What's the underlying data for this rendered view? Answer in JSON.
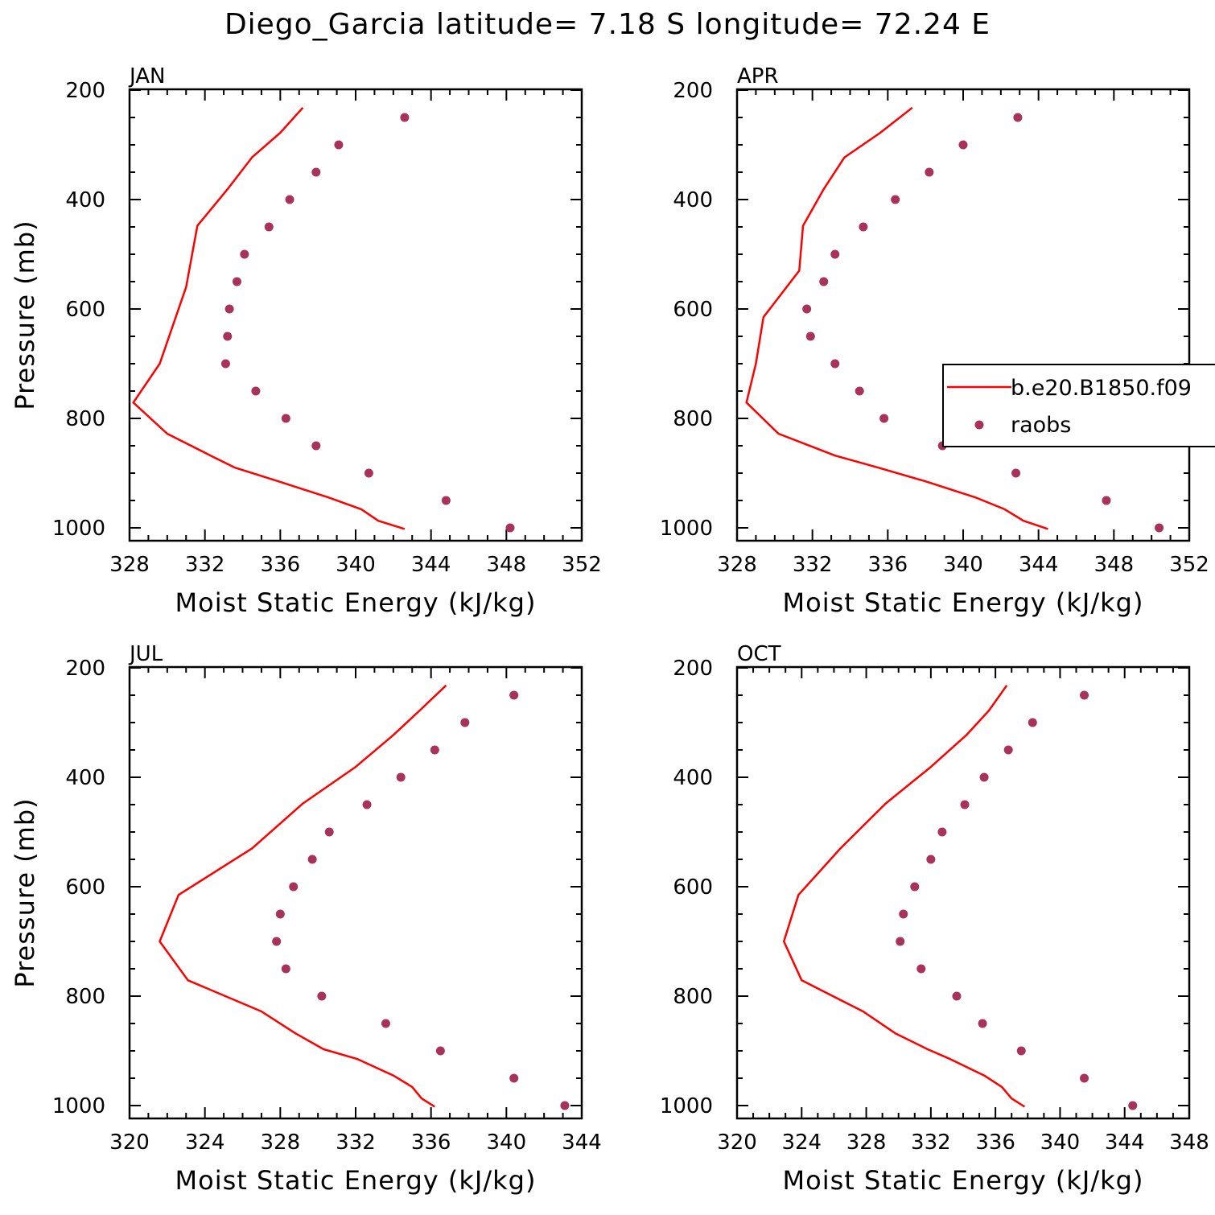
{
  "title": "Diego_Garcia  latitude= 7.18 S longitude= 72.24 E",
  "colors": {
    "model_line": "#ff0000",
    "raobs_dot": "#a8325a",
    "axis": "#000000"
  },
  "chart_data": [
    {
      "type": "line+scatter",
      "panel_label": "JAN",
      "xlabel": "Moist Static Energy (kJ/kg)",
      "ylabel": "Pressure (mb)",
      "xlim": [
        328,
        352
      ],
      "ylim": [
        1000,
        200
      ],
      "xticks": [
        328,
        332,
        336,
        340,
        344,
        348,
        352
      ],
      "yticks": [
        200,
        400,
        600,
        800,
        1000
      ],
      "legend": null,
      "series": [
        {
          "name": "b.e20.B1850.f09",
          "kind": "line",
          "x": [
            342.6,
            341.2,
            340.3,
            338.6,
            335.9,
            333.6,
            332.3,
            330.0,
            328.2,
            329.6,
            331.0,
            331.6,
            333.2,
            334.5,
            336.0,
            337.2
          ],
          "y": [
            1002,
            987,
            966,
            945,
            915,
            890,
            868,
            828,
            771,
            700,
            560,
            448,
            381,
            323,
            278,
            232
          ]
        },
        {
          "name": "raobs",
          "kind": "scatter",
          "x": [
            348.2,
            344.8,
            340.7,
            337.9,
            336.3,
            334.7,
            333.1,
            333.2,
            333.3,
            333.7,
            334.1,
            335.4,
            336.5,
            337.9,
            339.1,
            342.6
          ],
          "y": [
            1000,
            950,
            900,
            850,
            800,
            750,
            700,
            650,
            600,
            550,
            500,
            450,
            400,
            350,
            300,
            250
          ]
        }
      ]
    },
    {
      "type": "line+scatter",
      "panel_label": "APR",
      "xlabel": "Moist Static Energy (kJ/kg)",
      "ylabel": "",
      "xlim": [
        328,
        352
      ],
      "ylim": [
        1000,
        200
      ],
      "xticks": [
        328,
        332,
        336,
        340,
        344,
        348,
        352
      ],
      "yticks": [
        200,
        400,
        600,
        800,
        1000
      ],
      "legend": {
        "position": "right",
        "entries": [
          "b.e20.B1850.f09",
          "raobs"
        ]
      },
      "series": [
        {
          "name": "b.e20.B1850.f09",
          "kind": "line",
          "x": [
            344.5,
            343.2,
            342.2,
            340.7,
            338.0,
            335.5,
            333.2,
            330.2,
            328.5,
            329.0,
            329.4,
            331.3,
            331.5,
            332.6,
            333.7,
            335.6,
            337.3
          ],
          "y": [
            1002,
            987,
            966,
            945,
            915,
            890,
            868,
            828,
            771,
            700,
            615,
            530,
            448,
            381,
            323,
            278,
            232
          ]
        },
        {
          "name": "raobs",
          "kind": "scatter",
          "x": [
            350.4,
            347.6,
            342.8,
            338.9,
            335.8,
            334.5,
            333.2,
            331.9,
            331.7,
            332.6,
            333.2,
            334.7,
            336.4,
            338.2,
            340.0,
            342.9
          ],
          "y": [
            1000,
            950,
            900,
            850,
            800,
            750,
            700,
            650,
            600,
            550,
            500,
            450,
            400,
            350,
            300,
            250
          ]
        }
      ]
    },
    {
      "type": "line+scatter",
      "panel_label": "JUL",
      "xlabel": "Moist Static Energy (kJ/kg)",
      "ylabel": "Pressure (mb)",
      "xlim": [
        320,
        344
      ],
      "ylim": [
        1000,
        200
      ],
      "xticks": [
        320,
        324,
        328,
        332,
        336,
        340,
        344
      ],
      "yticks": [
        200,
        400,
        600,
        800,
        1000
      ],
      "legend": null,
      "series": [
        {
          "name": "b.e20.B1850.f09",
          "kind": "line",
          "x": [
            336.2,
            335.5,
            335.0,
            334.0,
            332.1,
            330.3,
            328.8,
            327.0,
            323.1,
            321.6,
            322.6,
            326.5,
            329.2,
            332.0,
            334.0,
            335.4,
            336.8
          ],
          "y": [
            1002,
            987,
            966,
            945,
            915,
            897,
            868,
            828,
            771,
            700,
            615,
            530,
            448,
            381,
            323,
            278,
            232
          ]
        },
        {
          "name": "raobs",
          "kind": "scatter",
          "x": [
            343.1,
            340.4,
            336.5,
            333.6,
            330.2,
            328.3,
            327.8,
            328.0,
            328.7,
            329.7,
            330.6,
            332.6,
            334.4,
            336.2,
            337.8,
            340.4
          ],
          "y": [
            1000,
            950,
            900,
            850,
            800,
            750,
            700,
            650,
            600,
            550,
            500,
            450,
            400,
            350,
            300,
            250
          ]
        }
      ]
    },
    {
      "type": "line+scatter",
      "panel_label": "OCT",
      "xlabel": "Moist Static Energy (kJ/kg)",
      "ylabel": "",
      "xlim": [
        320,
        348
      ],
      "ylim": [
        1000,
        200
      ],
      "xticks": [
        320,
        324,
        328,
        332,
        336,
        340,
        344,
        348
      ],
      "yticks": [
        200,
        400,
        600,
        800,
        1000
      ],
      "legend": null,
      "series": [
        {
          "name": "b.e20.B1850.f09",
          "kind": "line",
          "x": [
            337.8,
            337.0,
            336.4,
            335.3,
            333.2,
            331.8,
            329.8,
            327.8,
            324.0,
            322.9,
            323.8,
            326.4,
            329.2,
            332.0,
            334.2,
            335.6,
            336.7
          ],
          "y": [
            1002,
            987,
            966,
            945,
            915,
            897,
            868,
            828,
            771,
            700,
            615,
            530,
            448,
            381,
            323,
            278,
            232
          ]
        },
        {
          "name": "raobs",
          "kind": "scatter",
          "x": [
            344.5,
            341.5,
            337.6,
            335.2,
            333.6,
            331.4,
            330.1,
            330.3,
            331.0,
            332.0,
            332.7,
            334.1,
            335.3,
            336.8,
            338.3,
            341.5
          ],
          "y": [
            1000,
            950,
            900,
            850,
            800,
            750,
            700,
            650,
            600,
            550,
            500,
            450,
            400,
            350,
            300,
            250
          ]
        }
      ]
    }
  ]
}
